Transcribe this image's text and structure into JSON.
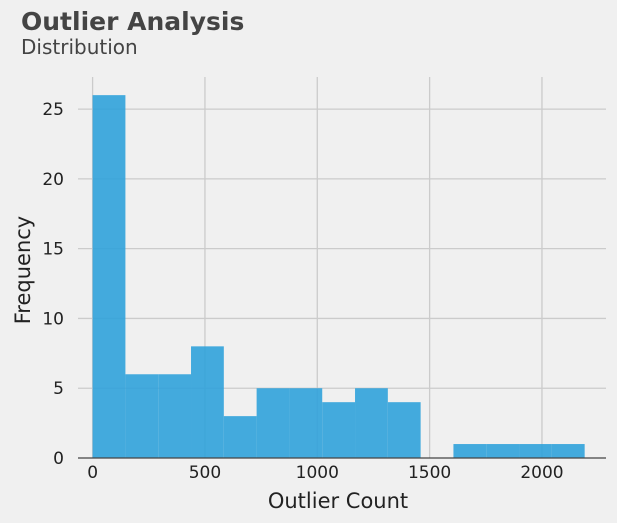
{
  "chart_data": {
    "type": "bar",
    "title": "Outlier Analysis",
    "subtitle": "Distribution",
    "xlabel": "Outlier Count",
    "ylabel": "Frequency",
    "x_ticks": [
      "0",
      "500",
      "1000",
      "1500",
      "2000"
    ],
    "y_ticks": [
      "0",
      "5",
      "10",
      "15",
      "20",
      "25"
    ],
    "xlim": [
      -65,
      2285
    ],
    "ylim": [
      0,
      27.3
    ],
    "grid": true,
    "bar_color": "#30a2da",
    "bins": [
      {
        "start": 0,
        "end": 146,
        "count": 26
      },
      {
        "start": 146,
        "end": 292,
        "count": 6
      },
      {
        "start": 292,
        "end": 438,
        "count": 6
      },
      {
        "start": 438,
        "end": 584,
        "count": 8
      },
      {
        "start": 584,
        "end": 730,
        "count": 3
      },
      {
        "start": 730,
        "end": 876,
        "count": 5
      },
      {
        "start": 876,
        "end": 1022,
        "count": 5
      },
      {
        "start": 1022,
        "end": 1168,
        "count": 4
      },
      {
        "start": 1168,
        "end": 1314,
        "count": 5
      },
      {
        "start": 1314,
        "end": 1460,
        "count": 4
      },
      {
        "start": 1460,
        "end": 1606,
        "count": 0
      },
      {
        "start": 1606,
        "end": 1752,
        "count": 1
      },
      {
        "start": 1752,
        "end": 1898,
        "count": 1
      },
      {
        "start": 1898,
        "end": 2044,
        "count": 1
      },
      {
        "start": 2044,
        "end": 2190,
        "count": 1
      }
    ]
  }
}
